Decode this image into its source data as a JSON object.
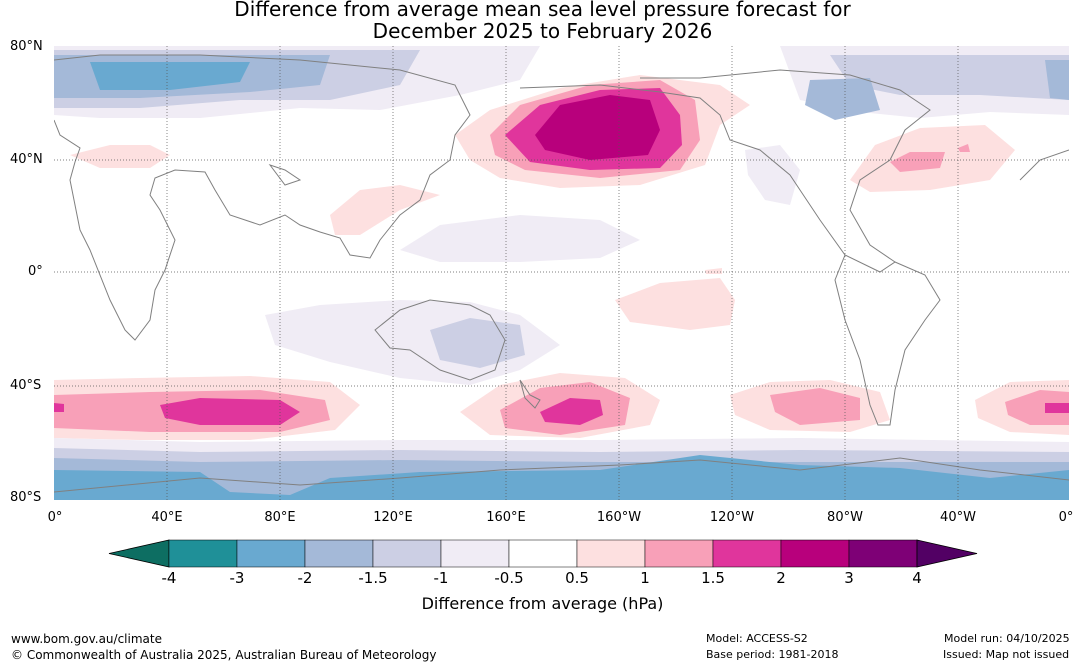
{
  "title": {
    "line1": "Difference from average mean sea level pressure forecast for",
    "line2": "December 2025 to February 2026"
  },
  "axes": {
    "lat_labels": [
      "80°N",
      "40°N",
      "0°",
      "40°S",
      "80°S"
    ],
    "lon_labels": [
      "0°",
      "40°E",
      "80°E",
      "120°E",
      "160°E",
      "160°W",
      "120°W",
      "80°W",
      "40°W",
      "0°"
    ]
  },
  "colorbar": {
    "ticks": [
      "-4",
      "-3",
      "-2",
      "-1.5",
      "-1",
      "-0.5",
      "0.5",
      "1",
      "1.5",
      "2",
      "3",
      "4"
    ],
    "colors": [
      "#0d6e62",
      "#1f9098",
      "#69a9d0",
      "#a4b9d8",
      "#cccfe4",
      "#f0ecf5",
      "#ffffff",
      "#fde0e0",
      "#f8a0b8",
      "#e0359c",
      "#b8007c",
      "#7e0076",
      "#520064"
    ],
    "label": "Difference from average (hPa)"
  },
  "footer": {
    "url": "www.bom.gov.au/climate",
    "copyright": "© Commonwealth of Australia 2025, Australian Bureau of Meteorology",
    "model": "Model: ACCESS-S2",
    "base_period": "Base period: 1981-2018",
    "model_run": "Model run: 04/10/2025",
    "issued": "Issued: Map not issued"
  }
}
